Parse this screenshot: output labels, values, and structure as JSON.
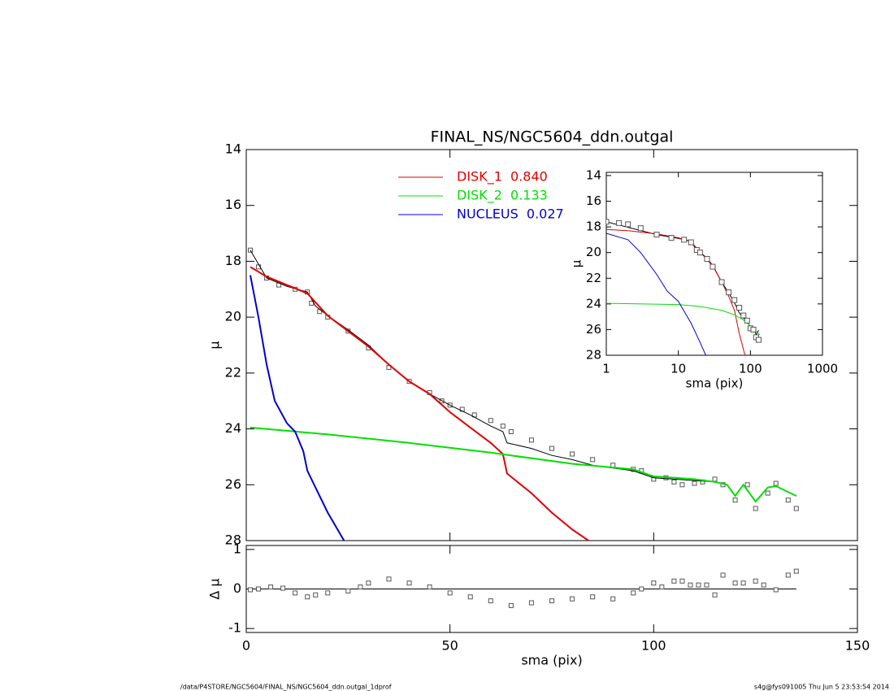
{
  "chart_data": [
    {
      "type": "line",
      "title": "FINAL_NS/NGC5604_ddn.outgal",
      "ylabel": "μ",
      "xlim": [
        0,
        150
      ],
      "xticks": [
        0,
        50,
        100,
        150
      ],
      "ylim": [
        28,
        14
      ],
      "yticks": [
        14,
        16,
        18,
        20,
        22,
        24,
        26,
        28
      ],
      "series": [
        {
          "color": "#555555",
          "marker": "square",
          "x": [
            1,
            3,
            5,
            8,
            12,
            15,
            16,
            18,
            20,
            25,
            30,
            35,
            40,
            45,
            48,
            50,
            53,
            56,
            60,
            63,
            65,
            70,
            75,
            80,
            85,
            90,
            95,
            97,
            100,
            103,
            105,
            107,
            110,
            112,
            115,
            117,
            120,
            123,
            125,
            128,
            130,
            133,
            135
          ],
          "values": [
            17.6,
            18.2,
            18.6,
            18.85,
            19.0,
            19.1,
            19.5,
            19.8,
            20.0,
            20.5,
            21.1,
            21.8,
            22.3,
            22.7,
            23.0,
            23.15,
            23.3,
            23.5,
            23.7,
            23.9,
            24.1,
            24.4,
            24.7,
            24.9,
            25.1,
            25.3,
            25.45,
            25.5,
            25.8,
            25.75,
            25.9,
            26.0,
            25.95,
            25.9,
            25.8,
            26.0,
            26.55,
            26.0,
            26.85,
            26.3,
            25.95,
            26.55,
            26.85
          ]
        },
        {
          "color": "#000000",
          "x": [
            1,
            5,
            10,
            15,
            17,
            20,
            25,
            30,
            35,
            40,
            45,
            50,
            55,
            60,
            63,
            64,
            70,
            75,
            80,
            85,
            90,
            95,
            100,
            105,
            110,
            115,
            118,
            120,
            122,
            125,
            128,
            130,
            135
          ],
          "values": [
            17.6,
            18.6,
            18.9,
            19.1,
            19.6,
            19.95,
            20.45,
            21.0,
            21.7,
            22.3,
            22.75,
            23.15,
            23.5,
            23.9,
            24.1,
            24.5,
            24.7,
            24.95,
            25.1,
            25.3,
            25.4,
            25.5,
            25.75,
            25.8,
            25.85,
            25.9,
            26.0,
            26.4,
            26.0,
            26.6,
            26.1,
            26.05,
            26.4
          ]
        },
        {
          "name": "DISK_1  0.840",
          "color": "#e00000",
          "x": [
            1,
            5,
            10,
            15,
            20,
            25,
            30,
            35,
            40,
            45,
            50,
            55,
            60,
            63,
            64,
            70,
            75,
            80,
            84
          ],
          "values": [
            18.2,
            18.55,
            18.85,
            19.15,
            19.95,
            20.5,
            21.05,
            21.7,
            22.3,
            22.75,
            23.4,
            23.95,
            24.5,
            24.9,
            25.6,
            26.3,
            27.0,
            27.6,
            28.0
          ]
        },
        {
          "name": "DISK_2  0.133",
          "color": "#00e000",
          "x": [
            1,
            20,
            40,
            60,
            80,
            95,
            100,
            110,
            115,
            118,
            120,
            122,
            125,
            128,
            130,
            135
          ],
          "values": [
            23.95,
            24.2,
            24.5,
            24.85,
            25.25,
            25.45,
            25.7,
            25.8,
            25.9,
            26.0,
            26.4,
            26.0,
            26.6,
            26.1,
            26.05,
            26.4
          ]
        },
        {
          "name": "NUCLEUS  0.027",
          "color": "#0000d0",
          "x": [
            1,
            3,
            5,
            7,
            10,
            12,
            14,
            15,
            17,
            20,
            24
          ],
          "values": [
            18.5,
            20.0,
            21.7,
            23.0,
            23.8,
            24.1,
            24.8,
            25.5,
            26.1,
            27.0,
            28.0
          ]
        }
      ]
    },
    {
      "type": "scatter",
      "xlabel": "sma (pix)",
      "ylabel": "Δ μ",
      "xlim": [
        0,
        150
      ],
      "xticks": [
        0,
        50,
        100,
        150
      ],
      "ylim": [
        -1.1,
        1.1
      ],
      "yticks": [
        -1,
        0,
        1
      ],
      "series": [
        {
          "color": "#555555",
          "marker": "square",
          "x": [
            1,
            3,
            6,
            9,
            12,
            15,
            17,
            20,
            25,
            28,
            30,
            35,
            40,
            45,
            50,
            55,
            60,
            65,
            70,
            75,
            80,
            85,
            90,
            95,
            97,
            100,
            102,
            105,
            107,
            109,
            111,
            113,
            115,
            117,
            120,
            122,
            125,
            127,
            130,
            133,
            135
          ],
          "values": [
            -0.02,
            0.0,
            0.05,
            0.02,
            -0.1,
            -0.2,
            -0.15,
            -0.1,
            -0.05,
            0.05,
            0.15,
            0.25,
            0.15,
            0.05,
            -0.1,
            -0.2,
            -0.3,
            -0.42,
            -0.35,
            -0.3,
            -0.25,
            -0.2,
            -0.25,
            -0.1,
            0.0,
            0.15,
            0.05,
            0.2,
            0.2,
            0.1,
            0.1,
            0.1,
            -0.15,
            0.35,
            0.15,
            0.15,
            0.2,
            0.1,
            -0.02,
            0.35,
            0.45
          ]
        }
      ]
    },
    {
      "type": "line",
      "xlabel": "sma (pix)",
      "ylabel": "μ",
      "xscale": "log",
      "xlim": [
        1,
        1000
      ],
      "xticks": [
        1,
        10,
        100,
        1000
      ],
      "ylim": [
        28,
        13.75
      ],
      "yticks": [
        14,
        16,
        18,
        20,
        22,
        24,
        26,
        28
      ],
      "series": [
        {
          "color": "#000000",
          "x": [
            1,
            5,
            10,
            15,
            17,
            20,
            25,
            30,
            40,
            50,
            60,
            70,
            80,
            90,
            100,
            110,
            120,
            130
          ],
          "values": [
            17.6,
            18.6,
            18.9,
            19.1,
            19.6,
            19.95,
            20.45,
            21.0,
            22.3,
            23.15,
            23.9,
            24.7,
            25.1,
            25.4,
            25.75,
            25.85,
            26.4,
            26.05
          ]
        },
        {
          "color": "#e00000",
          "x": [
            1,
            2,
            5,
            10,
            15,
            20,
            30,
            40,
            50,
            60,
            70,
            84
          ],
          "values": [
            18.2,
            18.3,
            18.55,
            18.85,
            19.15,
            19.95,
            21.05,
            22.3,
            23.4,
            24.5,
            26.3,
            28.0
          ]
        },
        {
          "color": "#00e000",
          "x": [
            1,
            10,
            20,
            40,
            60,
            80,
            100,
            135
          ],
          "values": [
            23.95,
            24.05,
            24.2,
            24.5,
            24.85,
            25.25,
            25.7,
            26.4
          ]
        },
        {
          "color": "#0000d0",
          "x": [
            1,
            2,
            3,
            5,
            7,
            10,
            15,
            20,
            24
          ],
          "values": [
            18.5,
            19.0,
            20.0,
            21.7,
            23.0,
            23.8,
            25.5,
            27.0,
            28.0
          ]
        },
        {
          "color": "#555555",
          "marker": "square",
          "x": [
            1,
            1.5,
            2,
            3,
            5,
            8,
            12,
            15,
            18,
            20,
            25,
            30,
            40,
            50,
            60,
            70,
            80,
            90,
            100,
            110,
            120,
            130
          ],
          "values": [
            17.6,
            17.7,
            17.8,
            18.1,
            18.6,
            18.85,
            19.0,
            19.2,
            19.8,
            20.0,
            20.5,
            21.1,
            22.3,
            23.1,
            23.7,
            24.3,
            24.9,
            25.3,
            25.9,
            26.0,
            26.6,
            26.8
          ]
        }
      ]
    }
  ],
  "footer": {
    "left": "/data/P4STORE/NGC5604/FINAL_NS/NGC5604_ddn.outgal_1dprof",
    "right": "s4g@fys091005  Thu Jun  5 23:53:54 2014"
  }
}
